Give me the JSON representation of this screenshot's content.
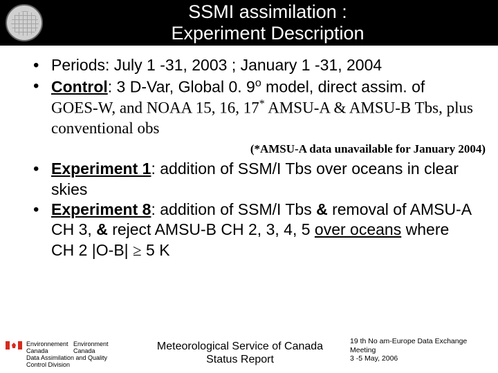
{
  "title": {
    "line1": "SSMI assimilation :",
    "line2": "Experiment Description"
  },
  "bullets1": {
    "periods_label": "Periods",
    "periods_text": ": July 1 -31, 2003 ; January 1 -31, 2004",
    "control_label": "Control",
    "control_text1": ": 3 D-Var, Global 0. 9",
    "control_deg": "o",
    "control_text2": " model, direct assim. of ",
    "control_goes": "GOES-W, and NOAA 15, 16, 17",
    "control_star": "*",
    "control_tail": " AMSU-A & AMSU-B Tbs, plus conventional obs"
  },
  "note": "(*AMSU-A data unavailable for January 2004)",
  "bullets2": {
    "exp1_label": "Experiment 1",
    "exp1_text": ": addition of SSM/I Tbs over oceans in clear skies",
    "exp8_label": "Experiment 8",
    "exp8_text1": ": addition of SSM/I Tbs ",
    "exp8_amp1": "&",
    "exp8_text2": " removal of AMSU-A CH 3, ",
    "exp8_amp2": "&",
    "exp8_text3": " reject AMSU-B CH 2, 3, 4, 5 ",
    "exp8_over": "over oceans",
    "exp8_text4": " where CH 2 |O-B| ",
    "exp8_ge": "≥",
    "exp8_text5": " 5 K"
  },
  "footer": {
    "org_fr1": "Environnement",
    "org_en1": "Environment",
    "org_fr2": "Canada",
    "org_en2": "Canada",
    "org_line3": "Data Assimilation and Quality",
    "org_line4": "Control Division",
    "center1": "Meteorological Service of Canada",
    "center2": "Status Report",
    "right1": "19 th No am-Europe Data Exchange Meeting",
    "right2": "3 -5 May, 2006"
  },
  "colors": {
    "title_bg": "#000000",
    "title_fg": "#ffffff",
    "text": "#000000",
    "flag_red": "#d52b1e"
  }
}
